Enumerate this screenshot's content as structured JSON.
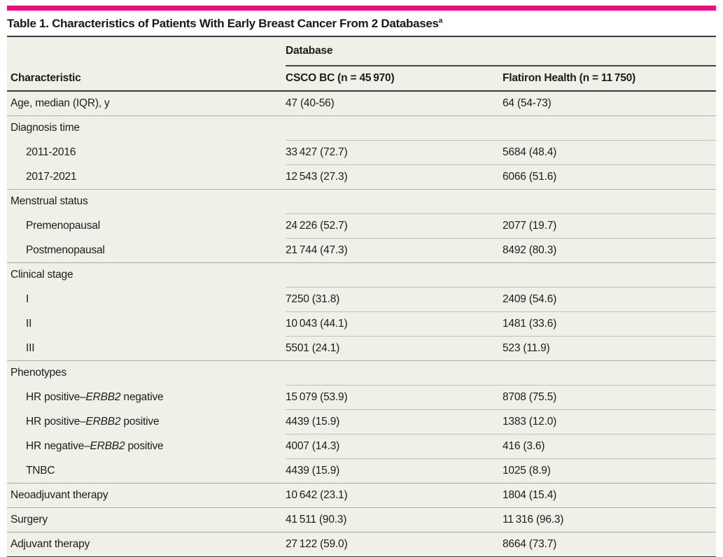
{
  "accent_color": "#ec0e7e",
  "title": {
    "text": "Table 1. Characteristics of Patients With Early Breast Cancer From 2 Databases",
    "footnote_marker": "a"
  },
  "table": {
    "spanner": "Database",
    "columns": {
      "characteristic": "Characteristic",
      "csco": "CSCO BC (n = 45 970)",
      "flatiron": "Flatiron Health (n = 11 750)"
    },
    "rows": [
      {
        "label": "Age, median (IQR), y",
        "indent": 0,
        "section": false,
        "rule": "none",
        "csco": "47 (40-56)",
        "flatiron": "64 (54-73)"
      },
      {
        "label": "Diagnosis time",
        "indent": 0,
        "section": true,
        "rule": "full",
        "csco": "",
        "flatiron": ""
      },
      {
        "label": "2011-2016",
        "indent": 1,
        "section": false,
        "rule": "indent",
        "csco": "33 427 (72.7)",
        "flatiron": "5684 (48.4)"
      },
      {
        "label": "2017-2021",
        "indent": 1,
        "section": false,
        "rule": "indent",
        "csco": "12 543 (27.3)",
        "flatiron": "6066 (51.6)"
      },
      {
        "label": "Menstrual status",
        "indent": 0,
        "section": true,
        "rule": "full",
        "csco": "",
        "flatiron": ""
      },
      {
        "label": "Premenopausal",
        "indent": 1,
        "section": false,
        "rule": "indent",
        "csco": "24 226 (52.7)",
        "flatiron": "2077 (19.7)"
      },
      {
        "label": "Postmenopausal",
        "indent": 1,
        "section": false,
        "rule": "indent",
        "csco": "21 744 (47.3)",
        "flatiron": "8492 (80.3)"
      },
      {
        "label": "Clinical stage",
        "indent": 0,
        "section": true,
        "rule": "full",
        "csco": "",
        "flatiron": ""
      },
      {
        "label": "I",
        "indent": 1,
        "section": false,
        "rule": "indent",
        "csco": "7250 (31.8)",
        "flatiron": "2409 (54.6)"
      },
      {
        "label": "II",
        "indent": 1,
        "section": false,
        "rule": "indent",
        "csco": "10 043 (44.1)",
        "flatiron": "1481 (33.6)"
      },
      {
        "label": "III",
        "indent": 1,
        "section": false,
        "rule": "indent",
        "csco": "5501 (24.1)",
        "flatiron": "523 (11.9)"
      },
      {
        "label": "Phenotypes",
        "indent": 0,
        "section": true,
        "rule": "full",
        "csco": "",
        "flatiron": ""
      },
      {
        "label_parts": [
          {
            "text": "HR positive–"
          },
          {
            "text": "ERBB2",
            "italic": true
          },
          {
            "text": " negative"
          }
        ],
        "indent": 1,
        "section": false,
        "rule": "indent",
        "csco": "15 079 (53.9)",
        "flatiron": "8708 (75.5)"
      },
      {
        "label_parts": [
          {
            "text": "HR positive–"
          },
          {
            "text": "ERBB2",
            "italic": true
          },
          {
            "text": " positive"
          }
        ],
        "indent": 1,
        "section": false,
        "rule": "indent",
        "csco": "4439 (15.9)",
        "flatiron": "1383 (12.0)"
      },
      {
        "label_parts": [
          {
            "text": "HR negative–"
          },
          {
            "text": "ERBB2",
            "italic": true
          },
          {
            "text": " positive"
          }
        ],
        "indent": 1,
        "section": false,
        "rule": "indent",
        "csco": "4007 (14.3)",
        "flatiron": "416 (3.6)"
      },
      {
        "label": "TNBC",
        "indent": 1,
        "section": false,
        "rule": "indent",
        "csco": "4439 (15.9)",
        "flatiron": "1025 (8.9)"
      },
      {
        "label": "Neoadjuvant therapy",
        "indent": 0,
        "section": false,
        "rule": "full",
        "csco": "10 642 (23.1)",
        "flatiron": "1804 (15.4)"
      },
      {
        "label": "Surgery",
        "indent": 0,
        "section": false,
        "rule": "full",
        "csco": "41 511 (90.3)",
        "flatiron": "11 316 (96.3)"
      },
      {
        "label": "Adjuvant therapy",
        "indent": 0,
        "section": false,
        "rule": "full",
        "csco": "27 122 (59.0)",
        "flatiron": "8664 (73.7)"
      }
    ]
  }
}
